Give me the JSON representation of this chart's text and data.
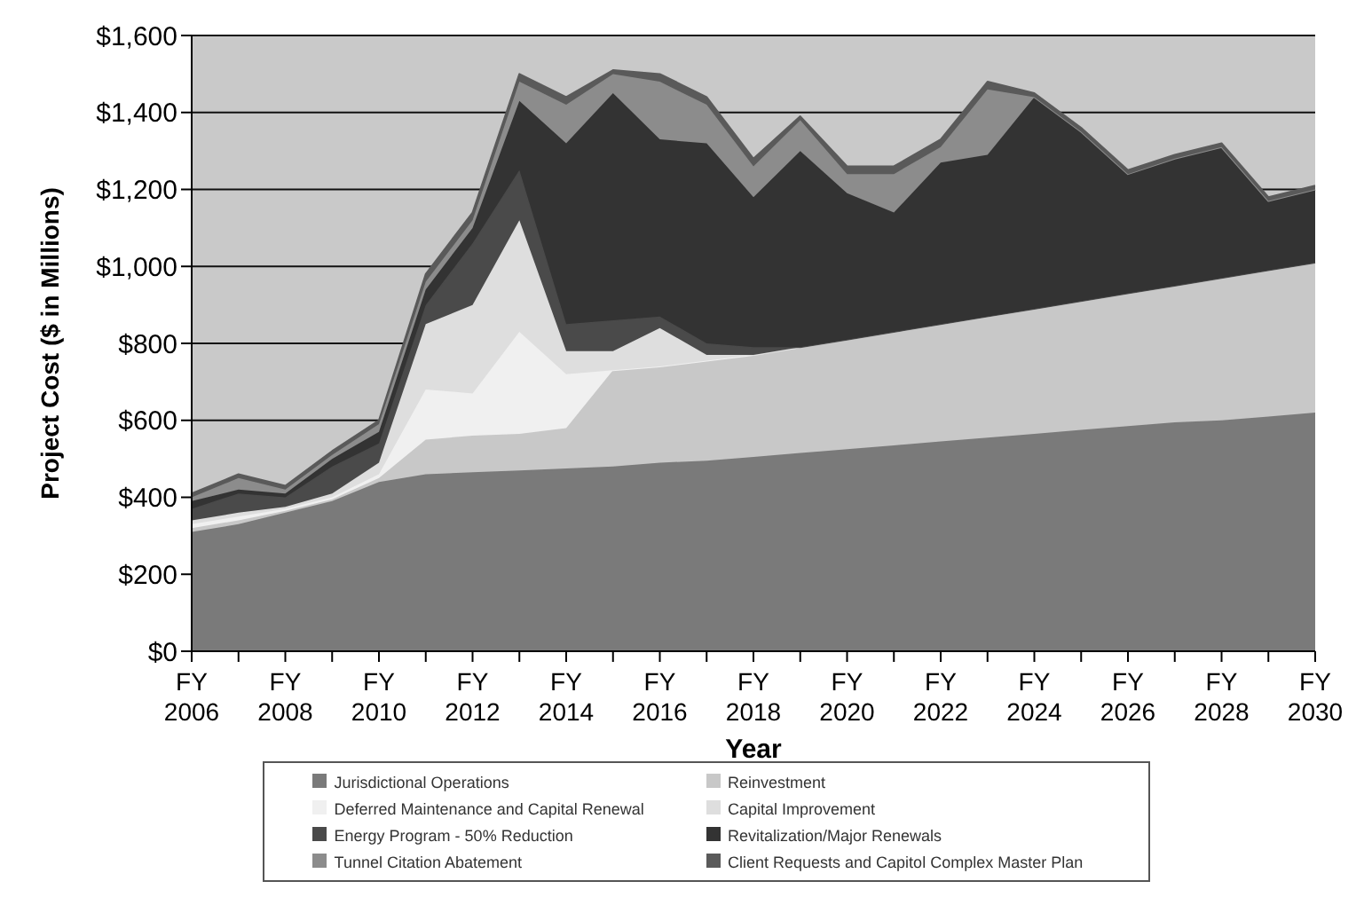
{
  "chart_data": {
    "type": "area",
    "stacked": true,
    "xlabel": "Year",
    "ylabel": "Project Cost ($ in Millions)",
    "categories": [
      "FY 2006",
      null,
      "FY 2008",
      null,
      "FY 2010",
      null,
      "FY 2012",
      null,
      "FY 2014",
      null,
      "FY 2016",
      null,
      "FY 2018",
      null,
      "FY 2020",
      null,
      "FY 2022",
      null,
      "FY 2024",
      null,
      "FY 2026",
      null,
      "FY 2028",
      null,
      "FY 2030"
    ],
    "ylim": [
      0,
      1600
    ],
    "yticks": [
      {
        "value": 0,
        "label": "$0"
      },
      {
        "value": 200,
        "label": "$200"
      },
      {
        "value": 400,
        "label": "$400"
      },
      {
        "value": 600,
        "label": "$600"
      },
      {
        "value": 800,
        "label": "$800"
      },
      {
        "value": 1000,
        "label": "$1,000"
      },
      {
        "value": 1200,
        "label": "$1,200"
      },
      {
        "value": 1400,
        "label": "$1,400"
      },
      {
        "value": 1600,
        "label": "$1,600"
      }
    ],
    "grid": "y",
    "legend": "bottom",
    "series": [
      {
        "name": "Jurisdictional Operations",
        "color": "#7a7a7a",
        "values": [
          310,
          330,
          360,
          390,
          440,
          460,
          465,
          470,
          475,
          480,
          490,
          495,
          505,
          515,
          525,
          535,
          545,
          555,
          565,
          575,
          585,
          595,
          600,
          610,
          620
        ]
      },
      {
        "name": "Reinvestment",
        "color": "#c8c8c8",
        "values": [
          10,
          10,
          5,
          5,
          10,
          90,
          95,
          95,
          105,
          250,
          250,
          260,
          265,
          275,
          285,
          295,
          305,
          315,
          325,
          335,
          345,
          355,
          370,
          380,
          390
        ]
      },
      {
        "name": "Deferred Maintenance and Capital Renewal",
        "color": "#f0f0f0",
        "values": [
          10,
          10,
          5,
          5,
          10,
          130,
          110,
          265,
          140,
          0,
          0,
          0,
          0,
          0,
          0,
          0,
          0,
          0,
          0,
          0,
          0,
          0,
          0,
          0,
          0
        ]
      },
      {
        "name": "Capital Improvement",
        "color": "#dedede",
        "values": [
          10,
          10,
          5,
          10,
          30,
          170,
          230,
          290,
          60,
          50,
          100,
          15,
          0,
          0,
          0,
          0,
          0,
          0,
          0,
          0,
          0,
          0,
          0,
          0,
          0
        ]
      },
      {
        "name": "Energy Program - 50% Reduction",
        "color": "#4a4a4a",
        "values": [
          30,
          50,
          25,
          70,
          50,
          50,
          160,
          130,
          70,
          80,
          30,
          30,
          20,
          0,
          0,
          0,
          0,
          0,
          0,
          0,
          0,
          0,
          0,
          0,
          0
        ]
      },
      {
        "name": "Revitalization/Major Renewals",
        "color": "#333333",
        "values": [
          20,
          10,
          10,
          20,
          30,
          40,
          40,
          180,
          470,
          590,
          460,
          520,
          390,
          510,
          380,
          310,
          420,
          420,
          550,
          440,
          310,
          330,
          340,
          180,
          190
        ]
      },
      {
        "name": "Tunnel Citation Abatement",
        "color": "#8c8c8c",
        "values": [
          10,
          30,
          10,
          10,
          20,
          20,
          20,
          50,
          100,
          50,
          150,
          100,
          80,
          80,
          50,
          100,
          40,
          170,
          0,
          0,
          0,
          0,
          0,
          0,
          0
        ]
      },
      {
        "name": "Client Requests and Capitol Complex Master Plan",
        "color": "#5a5a5a",
        "values": [
          10,
          10,
          10,
          10,
          10,
          20,
          20,
          20,
          20,
          10,
          20,
          20,
          20,
          10,
          20,
          20,
          20,
          20,
          10,
          10,
          10,
          10,
          10,
          10,
          10
        ]
      }
    ]
  }
}
